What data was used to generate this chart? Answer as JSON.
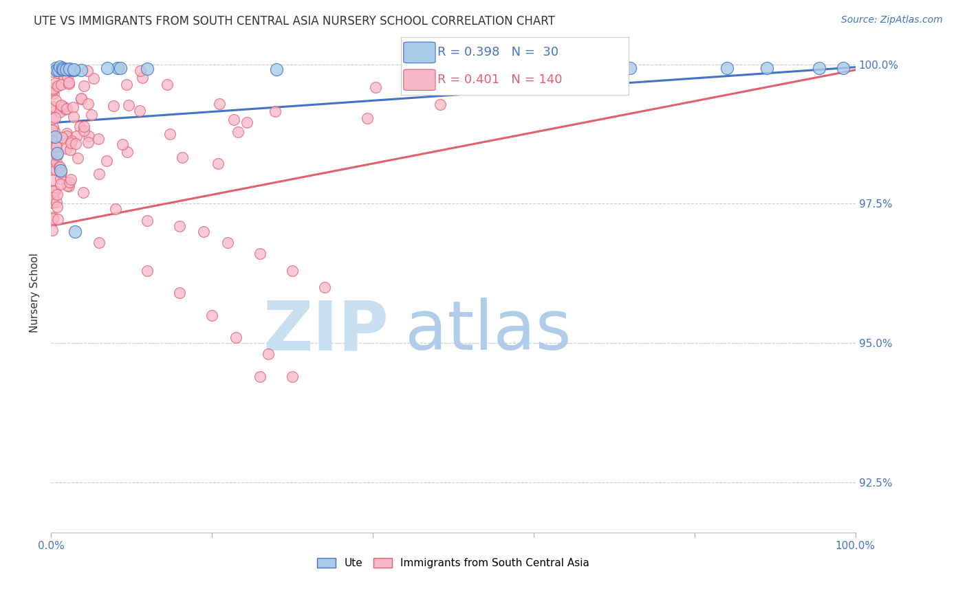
{
  "title": "UTE VS IMMIGRANTS FROM SOUTH CENTRAL ASIA NURSERY SCHOOL CORRELATION CHART",
  "source": "Source: ZipAtlas.com",
  "ylabel": "Nursery School",
  "xlim": [
    0.0,
    1.0
  ],
  "ylim": [
    0.916,
    1.002
  ],
  "yticks": [
    1.0,
    0.975,
    0.95,
    0.925
  ],
  "ytick_labels": [
    "100.0%",
    "97.5%",
    "95.0%",
    "92.5%"
  ],
  "blue_color": "#a8cce8",
  "pink_color": "#f7b8c8",
  "blue_line_color": "#4472c4",
  "pink_line_color": "#e06070",
  "watermark_zip_color": "#c8dff0",
  "watermark_atlas_color": "#b0cce8",
  "blue_trend_start_y": 0.9895,
  "blue_trend_end_y": 0.9995,
  "pink_trend_start_y": 0.971,
  "pink_trend_end_y": 0.999
}
